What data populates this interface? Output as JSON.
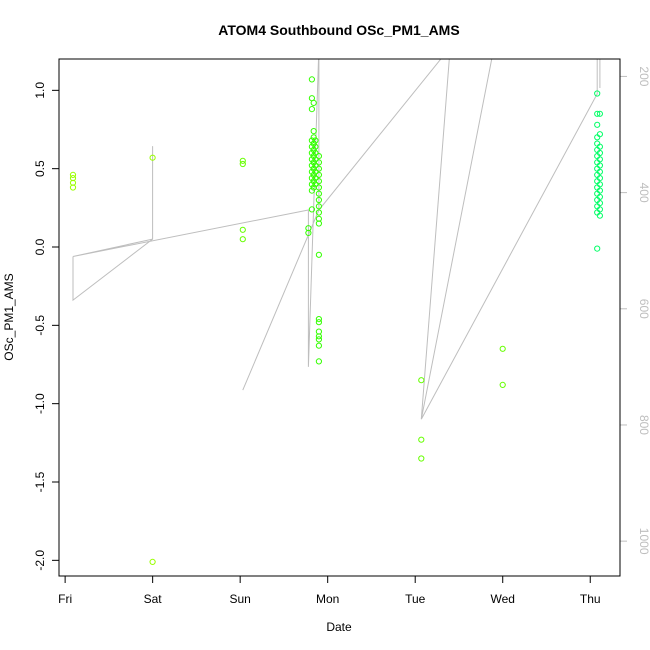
{
  "chart_data": {
    "type": "scatter",
    "title": "ATOM4 Southbound OSc_PM1_AMS",
    "xlabel": "Date",
    "ylabel": "OSc_PM1_AMS",
    "x_unit": "days since Friday 00:00",
    "x_ticks": [
      {
        "value": 0,
        "label": "Fri"
      },
      {
        "value": 1,
        "label": "Sat"
      },
      {
        "value": 2,
        "label": "Sun"
      },
      {
        "value": 3,
        "label": "Mon"
      },
      {
        "value": 4,
        "label": "Tue"
      },
      {
        "value": 5,
        "label": "Wed"
      },
      {
        "value": 6,
        "label": "Thu"
      }
    ],
    "xlim": [
      -0.07,
      6.34
    ],
    "ylim": [
      -2.1,
      1.2
    ],
    "y_ticks": [
      -2.0,
      -1.5,
      -1.0,
      -0.5,
      0.0,
      0.5,
      1.0
    ],
    "y_tick_labels": [
      "-2.0",
      "-1.5",
      "-1.0",
      "-0.5",
      "0.0",
      "0.5",
      "1.0"
    ],
    "y2_lim": [
      1060,
      170
    ],
    "y2_ticks": [
      200,
      400,
      600,
      800,
      1000
    ],
    "y2_tick_labels": [
      "200",
      "400",
      "600",
      "800",
      "1000"
    ],
    "colors": {
      "frame": "#000000",
      "track_line": "#bebebe",
      "right_axis": "#bebebe"
    },
    "series": [
      {
        "color": "#99ff00",
        "points": [
          [
            0.09,
            0.46
          ],
          [
            0.09,
            0.44
          ],
          [
            0.09,
            0.41
          ],
          [
            0.09,
            0.38
          ],
          [
            1.0,
            0.57
          ],
          [
            1.0,
            -2.01
          ]
        ]
      },
      {
        "color": "#66ff00",
        "points": [
          [
            2.03,
            0.55
          ],
          [
            2.03,
            0.53
          ],
          [
            2.03,
            0.11
          ],
          [
            2.03,
            0.05
          ],
          [
            4.07,
            -0.85
          ],
          [
            4.07,
            -1.23
          ],
          [
            4.07,
            -1.35
          ],
          [
            5.0,
            -0.65
          ],
          [
            5.0,
            -0.88
          ]
        ]
      },
      {
        "color": "#33ff00",
        "points": [
          [
            2.78,
            0.12
          ],
          [
            2.78,
            0.09
          ],
          [
            2.82,
            1.07
          ],
          [
            2.82,
            0.95
          ],
          [
            2.82,
            0.88
          ],
          [
            2.82,
            0.68
          ],
          [
            2.82,
            0.64
          ],
          [
            2.82,
            0.6
          ],
          [
            2.82,
            0.56
          ],
          [
            2.82,
            0.52
          ],
          [
            2.82,
            0.48
          ],
          [
            2.82,
            0.44
          ],
          [
            2.82,
            0.4
          ],
          [
            2.82,
            0.36
          ],
          [
            2.82,
            0.24
          ],
          [
            2.84,
            0.92
          ],
          [
            2.84,
            0.74
          ],
          [
            2.84,
            0.7
          ],
          [
            2.84,
            0.66
          ],
          [
            2.84,
            0.62
          ],
          [
            2.84,
            0.58
          ],
          [
            2.84,
            0.54
          ],
          [
            2.84,
            0.5
          ],
          [
            2.84,
            0.46
          ],
          [
            2.84,
            0.42
          ],
          [
            2.84,
            0.38
          ],
          [
            2.86,
            0.68
          ],
          [
            2.86,
            0.64
          ],
          [
            2.86,
            0.6
          ],
          [
            2.86,
            0.56
          ],
          [
            2.86,
            0.52
          ],
          [
            2.86,
            0.48
          ],
          [
            2.86,
            0.44
          ],
          [
            2.86,
            0.4
          ],
          [
            2.9,
            0.58
          ],
          [
            2.9,
            0.54
          ],
          [
            2.9,
            0.5
          ],
          [
            2.9,
            0.46
          ],
          [
            2.9,
            0.42
          ],
          [
            2.9,
            0.38
          ],
          [
            2.9,
            0.34
          ],
          [
            2.9,
            0.3
          ],
          [
            2.9,
            0.26
          ],
          [
            2.9,
            0.22
          ],
          [
            2.9,
            0.18
          ],
          [
            2.9,
            0.15
          ],
          [
            2.9,
            -0.05
          ],
          [
            2.9,
            -0.46
          ],
          [
            2.9,
            -0.48
          ],
          [
            2.9,
            -0.54
          ],
          [
            2.9,
            -0.57
          ],
          [
            2.9,
            -0.59
          ],
          [
            2.9,
            -0.63
          ],
          [
            2.9,
            -0.73
          ]
        ]
      },
      {
        "color": "#00ff66",
        "points": [
          [
            6.08,
            0.98
          ],
          [
            6.08,
            0.85
          ],
          [
            6.08,
            0.78
          ],
          [
            6.08,
            0.7
          ],
          [
            6.08,
            0.66
          ],
          [
            6.08,
            0.62
          ],
          [
            6.08,
            0.58
          ],
          [
            6.08,
            0.54
          ],
          [
            6.08,
            0.5
          ],
          [
            6.08,
            0.46
          ],
          [
            6.08,
            0.42
          ],
          [
            6.08,
            0.38
          ],
          [
            6.08,
            0.34
          ],
          [
            6.08,
            0.3
          ],
          [
            6.08,
            0.26
          ],
          [
            6.08,
            0.22
          ],
          [
            6.08,
            -0.01
          ],
          [
            6.11,
            0.85
          ],
          [
            6.11,
            0.72
          ],
          [
            6.11,
            0.64
          ],
          [
            6.11,
            0.6
          ],
          [
            6.11,
            0.56
          ],
          [
            6.11,
            0.52
          ],
          [
            6.11,
            0.48
          ],
          [
            6.11,
            0.44
          ],
          [
            6.11,
            0.4
          ],
          [
            6.11,
            0.36
          ],
          [
            6.11,
            0.32
          ],
          [
            6.11,
            0.28
          ],
          [
            6.11,
            0.24
          ],
          [
            6.11,
            0.2
          ]
        ]
      }
    ],
    "track_line_y2": [
      [
        0.09,
        510
      ],
      [
        0.09,
        585
      ],
      [
        1.0,
        480
      ],
      [
        1.0,
        320
      ],
      [
        1.0,
        480
      ],
      [
        0.09,
        510
      ],
      [
        2.78,
        430
      ],
      [
        2.78,
        700
      ],
      [
        2.9,
        150
      ],
      [
        2.9,
        430
      ],
      [
        2.03,
        740
      ],
      [
        2.9,
        430
      ],
      [
        4.4,
        150
      ],
      [
        4.07,
        790
      ],
      [
        4.9,
        150
      ],
      [
        4.07,
        790
      ],
      [
        6.08,
        230
      ],
      [
        6.08,
        150
      ],
      [
        6.11,
        150
      ],
      [
        6.11,
        220
      ]
    ]
  }
}
